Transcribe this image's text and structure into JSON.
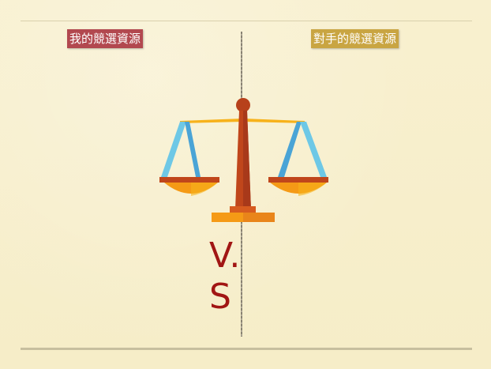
{
  "labels": {
    "mine": "我的競選資源",
    "opponent": "對手的競選資源"
  },
  "center_text": "V. S",
  "colors": {
    "background": "#f7efcc",
    "mine_label_bg": "#b2484f",
    "opponent_label_bg": "#c9a542",
    "vs_text": "#a11614",
    "scale_orange": "#f59a16",
    "scale_dark": "#c0461b",
    "scale_blue": "#58b8e0"
  },
  "icon": "balance-scale-icon"
}
